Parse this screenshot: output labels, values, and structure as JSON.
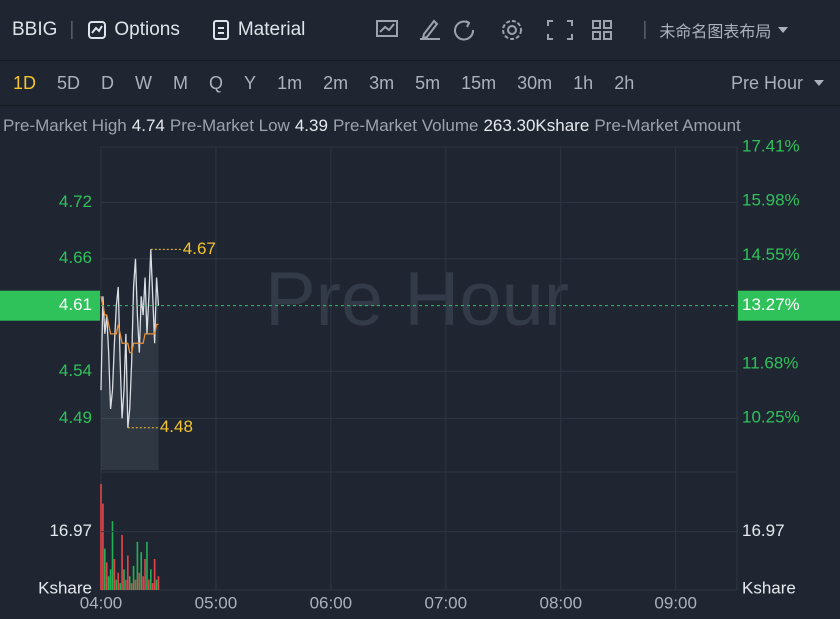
{
  "toolbar": {
    "symbol": "BBIG",
    "options": "Options",
    "material": "Material",
    "layout_name": "未命名图表布局"
  },
  "periods": [
    "1D",
    "5D",
    "D",
    "W",
    "M",
    "Q",
    "Y",
    "1m",
    "2m",
    "3m",
    "5m",
    "15m",
    "30m",
    "1h",
    "2h"
  ],
  "session": "Pre Hour",
  "stats": [
    {
      "label": "Pre-Market High",
      "value": "4.74"
    },
    {
      "label": "Pre-Market Low",
      "value": "4.39"
    },
    {
      "label": "Pre-Market Volume",
      "value": "263.30Kshare"
    },
    {
      "label": "Pre-Market Amount",
      "value": ""
    }
  ],
  "chart_data": [
    {
      "type": "line",
      "watermark": "Pre Hour",
      "x": [
        0,
        1,
        2,
        3,
        4,
        5,
        6,
        7,
        8,
        9,
        10,
        11,
        12,
        13,
        14,
        15,
        16,
        17,
        18,
        19,
        20,
        21,
        22,
        23,
        24,
        25,
        26,
        27,
        28,
        29,
        30
      ],
      "series": [
        {
          "color": "#d9dde3",
          "values": [
            4.52,
            4.62,
            4.58,
            4.6,
            4.56,
            4.5,
            4.52,
            4.57,
            4.61,
            4.63,
            4.55,
            4.49,
            4.52,
            4.58,
            4.48,
            4.5,
            4.55,
            4.63,
            4.66,
            4.6,
            4.56,
            4.62,
            4.6,
            4.64,
            4.58,
            4.62,
            4.67,
            4.62,
            4.57,
            4.64,
            4.61
          ]
        },
        {
          "color": "#e8923a",
          "values": [
            4.62,
            4.61,
            4.6,
            4.6,
            4.59,
            4.58,
            4.58,
            4.58,
            4.58,
            4.59,
            4.58,
            4.57,
            4.57,
            4.57,
            4.57,
            4.56,
            4.56,
            4.57,
            4.57,
            4.57,
            4.57,
            4.57,
            4.57,
            4.58,
            4.58,
            4.58,
            4.58,
            4.58,
            4.58,
            4.59,
            4.59
          ]
        }
      ],
      "xlim": [
        0,
        332
      ],
      "xticks": [
        {
          "value": 0,
          "label": "04:00"
        },
        {
          "value": 60,
          "label": "05:00"
        },
        {
          "value": 120,
          "label": "06:00"
        },
        {
          "value": 180,
          "label": "07:00"
        },
        {
          "value": 240,
          "label": "08:00"
        },
        {
          "value": 300,
          "label": "09:00"
        }
      ],
      "ylim": [
        4.435,
        4.779
      ],
      "yticks": [
        4.72,
        4.66,
        4.54,
        4.49
      ],
      "y2lim": [
        8.88,
        17.41
      ],
      "y2ticks": [
        {
          "value": 17.41,
          "label": "17.41%"
        },
        {
          "value": 15.98,
          "label": "15.98%"
        },
        {
          "value": 14.55,
          "label": "14.55%"
        },
        {
          "value": 11.68,
          "label": "11.68%"
        },
        {
          "value": 10.25,
          "label": "10.25%"
        }
      ],
      "last_price": 4.61,
      "last_change": {
        "value": 13.27,
        "label": "13.27%"
      },
      "high_label": 4.67,
      "low_label": 4.48,
      "grid": true
    },
    {
      "type": "bar",
      "unit": "Kshare",
      "x": [
        0,
        1,
        2,
        3,
        4,
        5,
        6,
        7,
        8,
        9,
        10,
        11,
        12,
        13,
        14,
        15,
        16,
        17,
        18,
        19,
        20,
        21,
        22,
        23,
        24,
        25,
        26,
        27,
        28,
        29,
        30
      ],
      "values": [
        30.8,
        25.1,
        12,
        8,
        4,
        6,
        20,
        9,
        3,
        5,
        2,
        16,
        6,
        3,
        10,
        4,
        2,
        7,
        3,
        14,
        5,
        11,
        4,
        9,
        14,
        3,
        6,
        2,
        9,
        3,
        4
      ],
      "colors": [
        "#e0474c",
        "#e0474c",
        "#22b255",
        "#e0474c",
        "#22b255",
        "#22b255",
        "#22b255",
        "#e0474c",
        "#22b255",
        "#e0474c",
        "#22b255",
        "#e0474c",
        "#22b255",
        "#e0474c",
        "#e0474c",
        "#22b255",
        "#e0474c",
        "#22b255",
        "#e0474c",
        "#22b255",
        "#e0474c",
        "#22b255",
        "#e0474c",
        "#e0474c",
        "#22b255",
        "#e0474c",
        "#22b255",
        "#e0474c",
        "#e0474c",
        "#22b255",
        "#e0474c"
      ],
      "xlim": [
        0,
        332
      ],
      "ylim": [
        0,
        33.4
      ],
      "yticks": [
        16.97
      ]
    }
  ]
}
